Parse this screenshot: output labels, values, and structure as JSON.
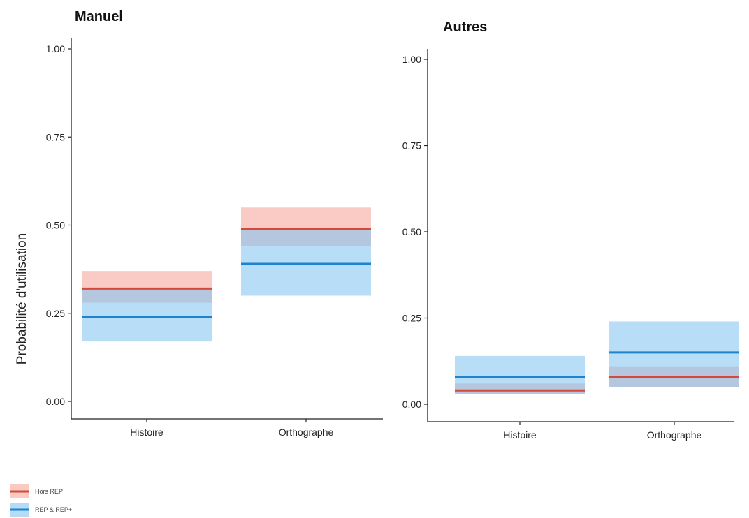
{
  "chart_data": [
    {
      "type": "crossbar",
      "title": "Manuel",
      "ylabel": "Probabilité d'utilisation",
      "ylim": [
        0,
        1
      ],
      "yticks": [
        "0.00",
        "0.25",
        "0.50",
        "0.75",
        "1.00"
      ],
      "categories": [
        "Histoire",
        "Orthographe"
      ],
      "series": [
        {
          "name": "Hors REP",
          "values": [
            0.32,
            0.49
          ],
          "lower": [
            0.28,
            0.44
          ],
          "upper": [
            0.37,
            0.55
          ]
        },
        {
          "name": "REP & REP+",
          "values": [
            0.24,
            0.39
          ],
          "lower": [
            0.17,
            0.3
          ],
          "upper": [
            0.32,
            0.49
          ]
        }
      ]
    },
    {
      "type": "crossbar",
      "title": "Autres",
      "ylim": [
        0,
        1
      ],
      "yticks": [
        "0.00",
        "0.25",
        "0.50",
        "0.75",
        "1.00"
      ],
      "categories": [
        "Histoire",
        "Orthographe"
      ],
      "series": [
        {
          "name": "Hors REP",
          "values": [
            0.04,
            0.08
          ],
          "lower": [
            0.03,
            0.05
          ],
          "upper": [
            0.06,
            0.11
          ]
        },
        {
          "name": "REP & REP+",
          "values": [
            0.08,
            0.15
          ],
          "lower": [
            0.03,
            0.05
          ],
          "upper": [
            0.14,
            0.24
          ]
        }
      ]
    }
  ],
  "legend": {
    "position": "bottom-left",
    "items": [
      {
        "label": "Hors REP",
        "line": "#d44a3a",
        "fill": "#f6a69a"
      },
      {
        "label": "REP & REP+",
        "line": "#1f82cd",
        "fill": "#83c4f1"
      }
    ]
  },
  "colors": {
    "Hors REP": {
      "line": "#d44a3a",
      "fill": "#f6a69a"
    },
    "REP & REP+": {
      "line": "#1f82cd",
      "fill": "#83c4f1"
    },
    "axis": "#222222"
  }
}
